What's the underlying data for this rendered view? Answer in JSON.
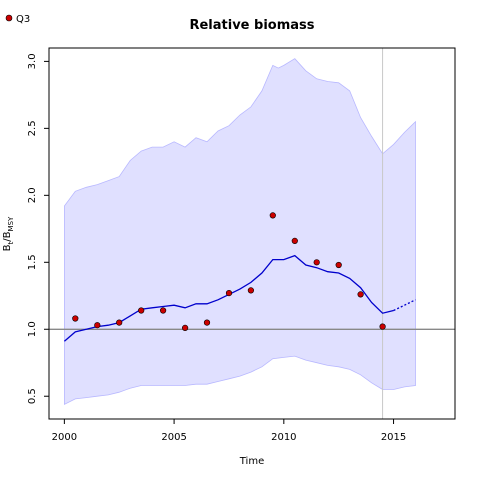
{
  "chart_data": {
    "type": "line",
    "title": "Relative biomass",
    "xlabel": "Time",
    "ylabel_main": "B",
    "ylabel_sub_t": "t",
    "ylabel_slash": "/B",
    "ylabel_sub_msy": "MSY",
    "xlim": [
      1999.3,
      2017.8
    ],
    "ylim": [
      0.33,
      3.1
    ],
    "x_ticks": [
      2000,
      2005,
      2010,
      2015
    ],
    "y_ticks": [
      0.5,
      1.0,
      1.5,
      2.0,
      2.5,
      3.0
    ],
    "x_tick_labels": [
      "2000",
      "2005",
      "2010",
      "2015"
    ],
    "y_tick_labels": [
      "0.5",
      "1.0",
      "1.5",
      "2.0",
      "2.5",
      "3.0"
    ],
    "reference_line_y": 1.0,
    "vertical_line_x": 2014.5,
    "colors": {
      "band": "#e0e0ff",
      "band_edge": "#b8b8ff",
      "line": "#0000cc",
      "points": "#cc0000",
      "reference": "#888888",
      "vline": "#c8c8c8"
    },
    "legend": {
      "position": "top-left",
      "entries": [
        {
          "label": "Q3",
          "color": "#cc0000"
        }
      ]
    },
    "series": [
      {
        "kind": "estimate",
        "x": [
          2000,
          2000.5,
          2001,
          2001.5,
          2002,
          2002.5,
          2003,
          2003.5,
          2004,
          2004.5,
          2005,
          2005.5,
          2006,
          2006.5,
          2007,
          2007.5,
          2008,
          2008.5,
          2009,
          2009.5,
          2010,
          2010.5,
          2011,
          2011.5,
          2012,
          2012.5,
          2013,
          2013.5,
          2014,
          2014.5,
          2015
        ],
        "y": [
          0.91,
          0.98,
          1.0,
          1.02,
          1.03,
          1.05,
          1.1,
          1.15,
          1.16,
          1.17,
          1.18,
          1.16,
          1.19,
          1.19,
          1.22,
          1.26,
          1.3,
          1.35,
          1.42,
          1.52,
          1.52,
          1.55,
          1.48,
          1.46,
          1.43,
          1.42,
          1.38,
          1.31,
          1.2,
          1.12,
          1.14
        ]
      },
      {
        "kind": "forecast",
        "x": [
          2015,
          2015.5,
          2016
        ],
        "y": [
          1.14,
          1.18,
          1.22
        ]
      },
      {
        "kind": "lower_ci",
        "x": [
          2000,
          2000.5,
          2001,
          2001.5,
          2002,
          2002.5,
          2003,
          2003.5,
          2004,
          2004.5,
          2005,
          2005.5,
          2006,
          2006.5,
          2007,
          2007.5,
          2008,
          2008.5,
          2009,
          2009.5,
          2010,
          2010.5,
          2011,
          2011.5,
          2012,
          2012.5,
          2013,
          2013.5,
          2014,
          2014.5,
          2015,
          2015.5,
          2016
        ],
        "y": [
          0.44,
          0.48,
          0.49,
          0.5,
          0.51,
          0.53,
          0.56,
          0.58,
          0.58,
          0.58,
          0.58,
          0.58,
          0.59,
          0.59,
          0.61,
          0.63,
          0.65,
          0.68,
          0.72,
          0.78,
          0.79,
          0.8,
          0.77,
          0.75,
          0.73,
          0.72,
          0.7,
          0.66,
          0.6,
          0.55,
          0.55,
          0.57,
          0.58
        ]
      },
      {
        "kind": "upper_ci",
        "x": [
          2000,
          2000.5,
          2001,
          2001.5,
          2002,
          2002.5,
          2003,
          2003.5,
          2004,
          2004.5,
          2005,
          2005.5,
          2006,
          2006.5,
          2007,
          2007.5,
          2008,
          2008.5,
          2009,
          2009.5,
          2009.75,
          2010,
          2010.5,
          2011,
          2011.5,
          2012,
          2012.5,
          2013,
          2013.5,
          2014,
          2014.5,
          2015,
          2015.5,
          2016
        ],
        "y": [
          1.92,
          2.03,
          2.06,
          2.08,
          2.11,
          2.14,
          2.26,
          2.33,
          2.36,
          2.36,
          2.4,
          2.36,
          2.43,
          2.4,
          2.48,
          2.52,
          2.6,
          2.66,
          2.78,
          2.97,
          2.95,
          2.97,
          3.02,
          2.93,
          2.87,
          2.85,
          2.84,
          2.78,
          2.58,
          2.44,
          2.31,
          2.38,
          2.47,
          2.55
        ]
      },
      {
        "kind": "observations",
        "name": "Q3",
        "x": [
          2000.5,
          2001.5,
          2002.5,
          2003.5,
          2004.5,
          2005.5,
          2006.5,
          2007.5,
          2008.5,
          2009.5,
          2010.5,
          2011.5,
          2012.5,
          2013.5,
          2014.5
        ],
        "y": [
          1.08,
          1.03,
          1.05,
          1.14,
          1.14,
          1.01,
          1.05,
          1.27,
          1.29,
          1.85,
          1.66,
          1.5,
          1.48,
          1.26,
          1.02
        ]
      }
    ]
  }
}
